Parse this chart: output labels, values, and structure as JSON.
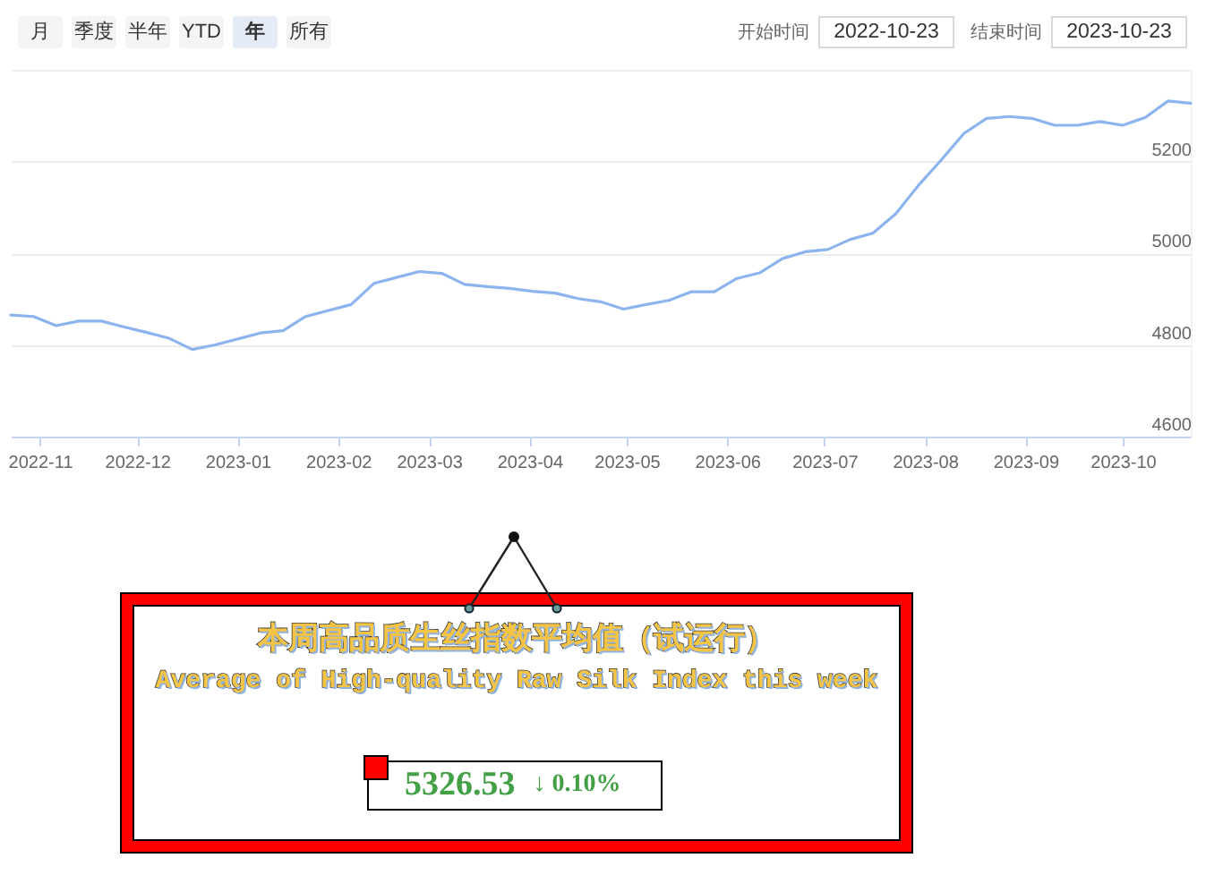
{
  "chart_data": [
    {
      "type": "line",
      "annotations": [
        "月",
        "季度",
        "半年",
        "YTD",
        "年",
        "所有",
        "开始时间",
        "2022-10-23",
        "结束时间",
        "2023-10-23"
      ],
      "x": [
        "2022-10-23",
        "2022-10-30",
        "2022-11-06",
        "2022-11-13",
        "2022-11-20",
        "2022-11-27",
        "2022-12-04",
        "2022-12-11",
        "2022-12-18",
        "2022-12-25",
        "2023-01-01",
        "2023-01-08",
        "2023-01-15",
        "2023-01-22",
        "2023-02-05",
        "2023-02-12",
        "2023-02-19",
        "2023-02-26",
        "2023-03-05",
        "2023-03-12",
        "2023-03-19",
        "2023-03-26",
        "2023-04-02",
        "2023-04-09",
        "2023-04-16",
        "2023-04-23",
        "2023-04-30",
        "2023-05-07",
        "2023-05-14",
        "2023-05-21",
        "2023-05-28",
        "2023-06-04",
        "2023-06-11",
        "2023-06-18",
        "2023-06-25",
        "2023-07-02",
        "2023-07-09",
        "2023-07-16",
        "2023-07-23",
        "2023-07-30",
        "2023-08-06",
        "2023-08-13",
        "2023-08-20",
        "2023-08-27",
        "2023-09-03",
        "2023-09-10",
        "2023-09-17",
        "2023-09-24",
        "2023-10-01",
        "2023-10-08",
        "2023-10-15",
        "2023-10-22"
      ],
      "values": [
        4865,
        4862,
        4842,
        4852,
        4852,
        4839,
        4827,
        4814,
        4790,
        4800,
        4813,
        4826,
        4831,
        4862,
        4888,
        4934,
        4947,
        4960,
        4956,
        4932,
        4927,
        4923,
        4917,
        4913,
        4901,
        4894,
        4878,
        4888,
        4897,
        4916,
        4916,
        4945,
        4957,
        4988,
        5003,
        5008,
        5030,
        5044,
        5086,
        5148,
        5203,
        5261,
        5294,
        5298,
        5294,
        5279,
        5279,
        5287,
        5279,
        5296,
        5332,
        5327
      ],
      "color": "#8cb4ef",
      "xlim": [
        "2022-10-23",
        "2023-10-22"
      ],
      "xticks": [
        "2022-11",
        "2022-12",
        "2023-01",
        "2023-02",
        "2023-03",
        "2023-04",
        "2023-05",
        "2023-06",
        "2023-07",
        "2023-08",
        "2023-09",
        "2023-10"
      ],
      "ylim": [
        4600,
        5400
      ],
      "yticks": [
        4600,
        4800,
        5000,
        5200,
        {
          "value": 5400,
          "label": null
        }
      ],
      "grid": "y"
    },
    {
      "type": "other",
      "title": "本周高品质生丝指数平均值（试运行）",
      "subtitle": "Average of High-quality Raw Silk Index this week",
      "annotations": [
        "5326.53",
        "↓ 0.10%"
      ]
    }
  ]
}
